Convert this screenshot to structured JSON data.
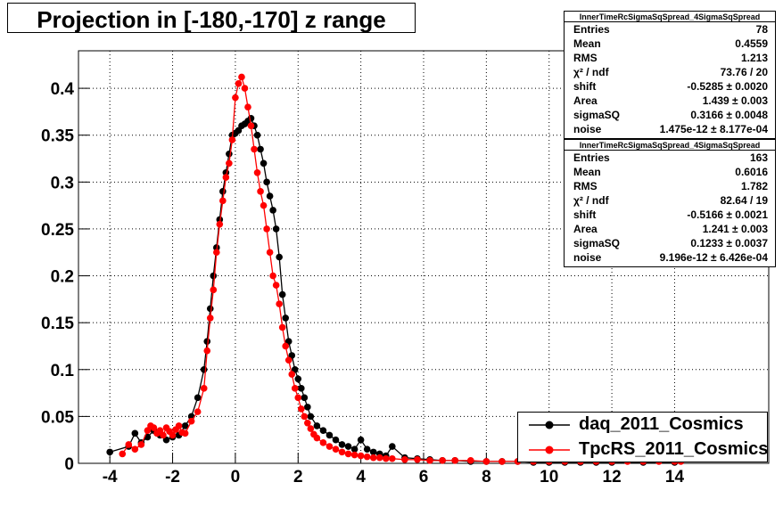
{
  "title": "Projection in [-180,-170] z range",
  "stats": [
    {
      "header": "InnerTimeRcSigmaSqSpread_4SigmaSqSpread",
      "rows": [
        {
          "label": "Entries",
          "value": "78"
        },
        {
          "label": "Mean",
          "value": "0.4559"
        },
        {
          "label": "RMS",
          "value": "1.213"
        },
        {
          "label": "χ² / ndf",
          "value": "73.76 / 20"
        },
        {
          "label": "shift",
          "value": "-0.5285 ± 0.0020"
        },
        {
          "label": "Area",
          "value": "1.439 ± 0.003"
        },
        {
          "label": "sigmaSQ",
          "value": "0.3166 ± 0.0048"
        },
        {
          "label": "noise",
          "value": "1.475e-12 ± 8.177e-04"
        }
      ]
    },
    {
      "header": "InnerTimeRcSigmaSqSpread_4SigmaSqSpread",
      "rows": [
        {
          "label": "Entries",
          "value": "163"
        },
        {
          "label": "Mean",
          "value": "0.6016"
        },
        {
          "label": "RMS",
          "value": "1.782"
        },
        {
          "label": "χ² / ndf",
          "value": "82.64 / 19"
        },
        {
          "label": "shift",
          "value": "-0.5166 ± 0.0021"
        },
        {
          "label": "Area",
          "value": "1.241 ± 0.003"
        },
        {
          "label": "sigmaSQ",
          "value": "0.1233 ± 0.0037"
        },
        {
          "label": "noise",
          "value": "9.196e-12 ± 6.426e-04"
        }
      ]
    }
  ],
  "legend": [
    {
      "label": "daq_2011_Cosmics",
      "color": "#000000"
    },
    {
      "label": "TpcRS_2011_Cosmics",
      "color": "#ff0000"
    }
  ],
  "chart_data": {
    "type": "scatter",
    "xlim": [
      -5,
      17
    ],
    "ylim": [
      0,
      0.44
    ],
    "grid": true,
    "legend_position": "bottom-right",
    "x_ticks": [
      -4,
      -2,
      0,
      2,
      4,
      6,
      8,
      10,
      12,
      14
    ],
    "x_tick_labels": [
      "-4",
      "-2",
      "0",
      "2",
      "4",
      "6",
      "8",
      "10",
      "12",
      "14"
    ],
    "y_ticks": [
      0,
      0.05,
      0.1,
      0.15,
      0.2,
      0.25,
      0.3,
      0.35,
      0.4
    ],
    "y_tick_labels": [
      "0",
      "0.05",
      "0.1",
      "0.15",
      "0.2",
      "0.25",
      "0.3",
      "0.35",
      "0.4"
    ],
    "series": [
      {
        "name": "daq_2011_Cosmics",
        "color": "#000000",
        "x": [
          -4.0,
          -3.4,
          -3.2,
          -3.0,
          -2.8,
          -2.6,
          -2.4,
          -2.2,
          -2.0,
          -1.8,
          -1.6,
          -1.4,
          -1.2,
          -1.0,
          -0.9,
          -0.8,
          -0.7,
          -0.6,
          -0.5,
          -0.4,
          -0.3,
          -0.2,
          -0.1,
          0.0,
          0.1,
          0.2,
          0.3,
          0.4,
          0.5,
          0.6,
          0.7,
          0.8,
          0.9,
          1.0,
          1.1,
          1.2,
          1.3,
          1.4,
          1.5,
          1.6,
          1.7,
          1.8,
          1.9,
          2.0,
          2.1,
          2.2,
          2.3,
          2.4,
          2.6,
          2.8,
          3.0,
          3.2,
          3.4,
          3.6,
          3.8,
          4.0,
          4.2,
          4.4,
          4.6,
          4.8,
          5.0,
          5.4,
          5.8,
          6.2,
          6.6,
          7.0,
          7.5,
          8.0,
          8.5,
          9.0,
          9.5,
          10.0,
          10.5,
          11.0,
          11.5,
          12.0,
          13.0,
          14.0
        ],
        "y": [
          0.012,
          0.018,
          0.032,
          0.022,
          0.028,
          0.035,
          0.03,
          0.025,
          0.028,
          0.03,
          0.04,
          0.05,
          0.07,
          0.1,
          0.13,
          0.165,
          0.2,
          0.23,
          0.26,
          0.29,
          0.31,
          0.33,
          0.35,
          0.352,
          0.355,
          0.36,
          0.362,
          0.365,
          0.368,
          0.36,
          0.35,
          0.335,
          0.32,
          0.3,
          0.285,
          0.27,
          0.25,
          0.22,
          0.18,
          0.155,
          0.13,
          0.115,
          0.1,
          0.09,
          0.08,
          0.07,
          0.06,
          0.05,
          0.04,
          0.035,
          0.03,
          0.025,
          0.02,
          0.018,
          0.015,
          0.025,
          0.015,
          0.012,
          0.01,
          0.008,
          0.018,
          0.006,
          0.005,
          0.004,
          0.003,
          0.003,
          0.002,
          0.002,
          0.002,
          0.002,
          0.001,
          0.001,
          0.001,
          0.001,
          0.001,
          0.001,
          0.001,
          0.001
        ]
      },
      {
        "name": "TpcRS_2011_Cosmics",
        "color": "#ff0000",
        "x": [
          -3.6,
          -3.4,
          -3.2,
          -3.0,
          -2.8,
          -2.7,
          -2.6,
          -2.5,
          -2.4,
          -2.3,
          -2.2,
          -2.1,
          -2.0,
          -1.9,
          -1.8,
          -1.7,
          -1.6,
          -1.4,
          -1.2,
          -1.0,
          -0.9,
          -0.8,
          -0.7,
          -0.6,
          -0.5,
          -0.4,
          -0.3,
          -0.2,
          -0.1,
          0.0,
          0.1,
          0.2,
          0.3,
          0.4,
          0.5,
          0.6,
          0.7,
          0.8,
          0.9,
          1.0,
          1.1,
          1.2,
          1.3,
          1.4,
          1.5,
          1.6,
          1.7,
          1.8,
          1.9,
          2.0,
          2.1,
          2.2,
          2.3,
          2.4,
          2.5,
          2.6,
          2.8,
          3.0,
          3.2,
          3.4,
          3.6,
          3.8,
          4.0,
          4.2,
          4.4,
          4.6,
          4.8,
          5.0,
          5.4,
          5.8,
          6.2,
          6.6,
          7.0,
          7.5,
          8.0,
          8.5,
          9.0,
          9.5,
          10.0,
          10.5,
          11.0,
          11.5,
          12.0,
          12.5,
          13.0,
          13.5,
          14.0,
          14.2
        ],
        "y": [
          0.01,
          0.02,
          0.015,
          0.02,
          0.035,
          0.04,
          0.038,
          0.032,
          0.035,
          0.03,
          0.038,
          0.034,
          0.03,
          0.036,
          0.04,
          0.033,
          0.032,
          0.045,
          0.055,
          0.08,
          0.12,
          0.155,
          0.185,
          0.225,
          0.255,
          0.28,
          0.305,
          0.32,
          0.345,
          0.39,
          0.405,
          0.412,
          0.4,
          0.38,
          0.36,
          0.335,
          0.31,
          0.29,
          0.275,
          0.25,
          0.225,
          0.2,
          0.19,
          0.17,
          0.145,
          0.125,
          0.11,
          0.095,
          0.08,
          0.07,
          0.058,
          0.05,
          0.043,
          0.037,
          0.031,
          0.027,
          0.022,
          0.018,
          0.015,
          0.012,
          0.01,
          0.009,
          0.008,
          0.007,
          0.006,
          0.006,
          0.005,
          0.005,
          0.004,
          0.004,
          0.003,
          0.003,
          0.003,
          0.003,
          0.002,
          0.002,
          0.002,
          0.002,
          0.002,
          0.002,
          0.002,
          0.002,
          0.002,
          0.002,
          0.002,
          0.002,
          0.002,
          0.002
        ]
      }
    ]
  }
}
